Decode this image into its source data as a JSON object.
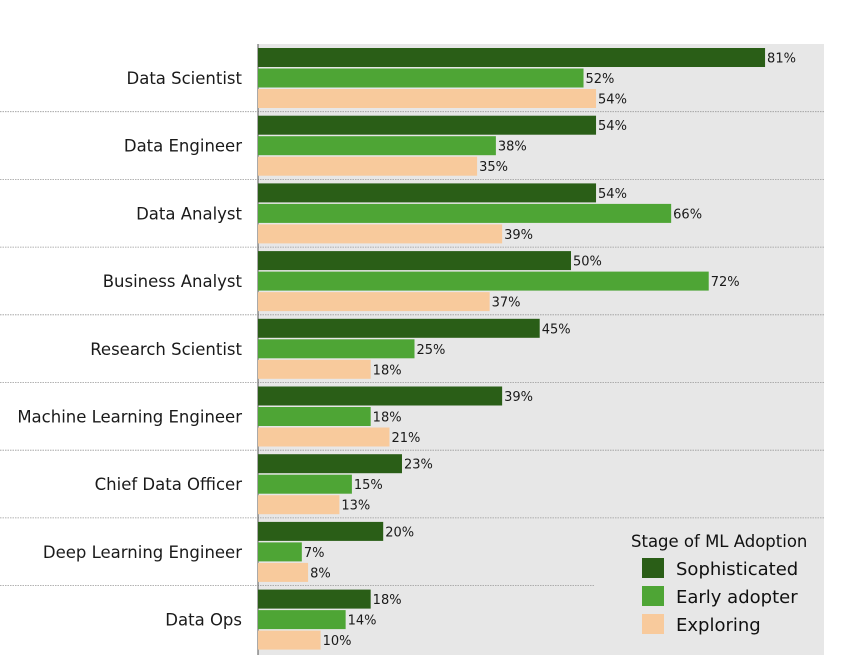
{
  "chart_data": {
    "type": "bar",
    "orientation": "horizontal",
    "title": "",
    "xlabel": "",
    "ylabel": "",
    "xlim": [
      0,
      100
    ],
    "grid": false,
    "value_suffix": "%",
    "categories": [
      "Data Scientist",
      "Data Engineer",
      "Data Analyst",
      "Business Analyst",
      "Research Scientist",
      "Machine Learning Engineer",
      "Chief Data Officer",
      "Deep Learning Engineer",
      "Data Ops"
    ],
    "series": [
      {
        "name": "Sophisticated",
        "color": "#2a5e17",
        "values": [
          81,
          54,
          54,
          50,
          45,
          39,
          23,
          20,
          18
        ]
      },
      {
        "name": "Early adopter",
        "color": "#4ea535",
        "values": [
          52,
          38,
          66,
          72,
          25,
          18,
          15,
          7,
          14
        ]
      },
      {
        "name": "Exploring",
        "color": "#f8ca9c",
        "values": [
          54,
          35,
          39,
          37,
          18,
          21,
          13,
          8,
          10
        ]
      }
    ],
    "legend": {
      "title": "Stage of ML Adoption",
      "position": "bottom-right"
    }
  },
  "colors": {
    "plot_background": "#e7e7e7",
    "separator": "#9a9a9a"
  }
}
